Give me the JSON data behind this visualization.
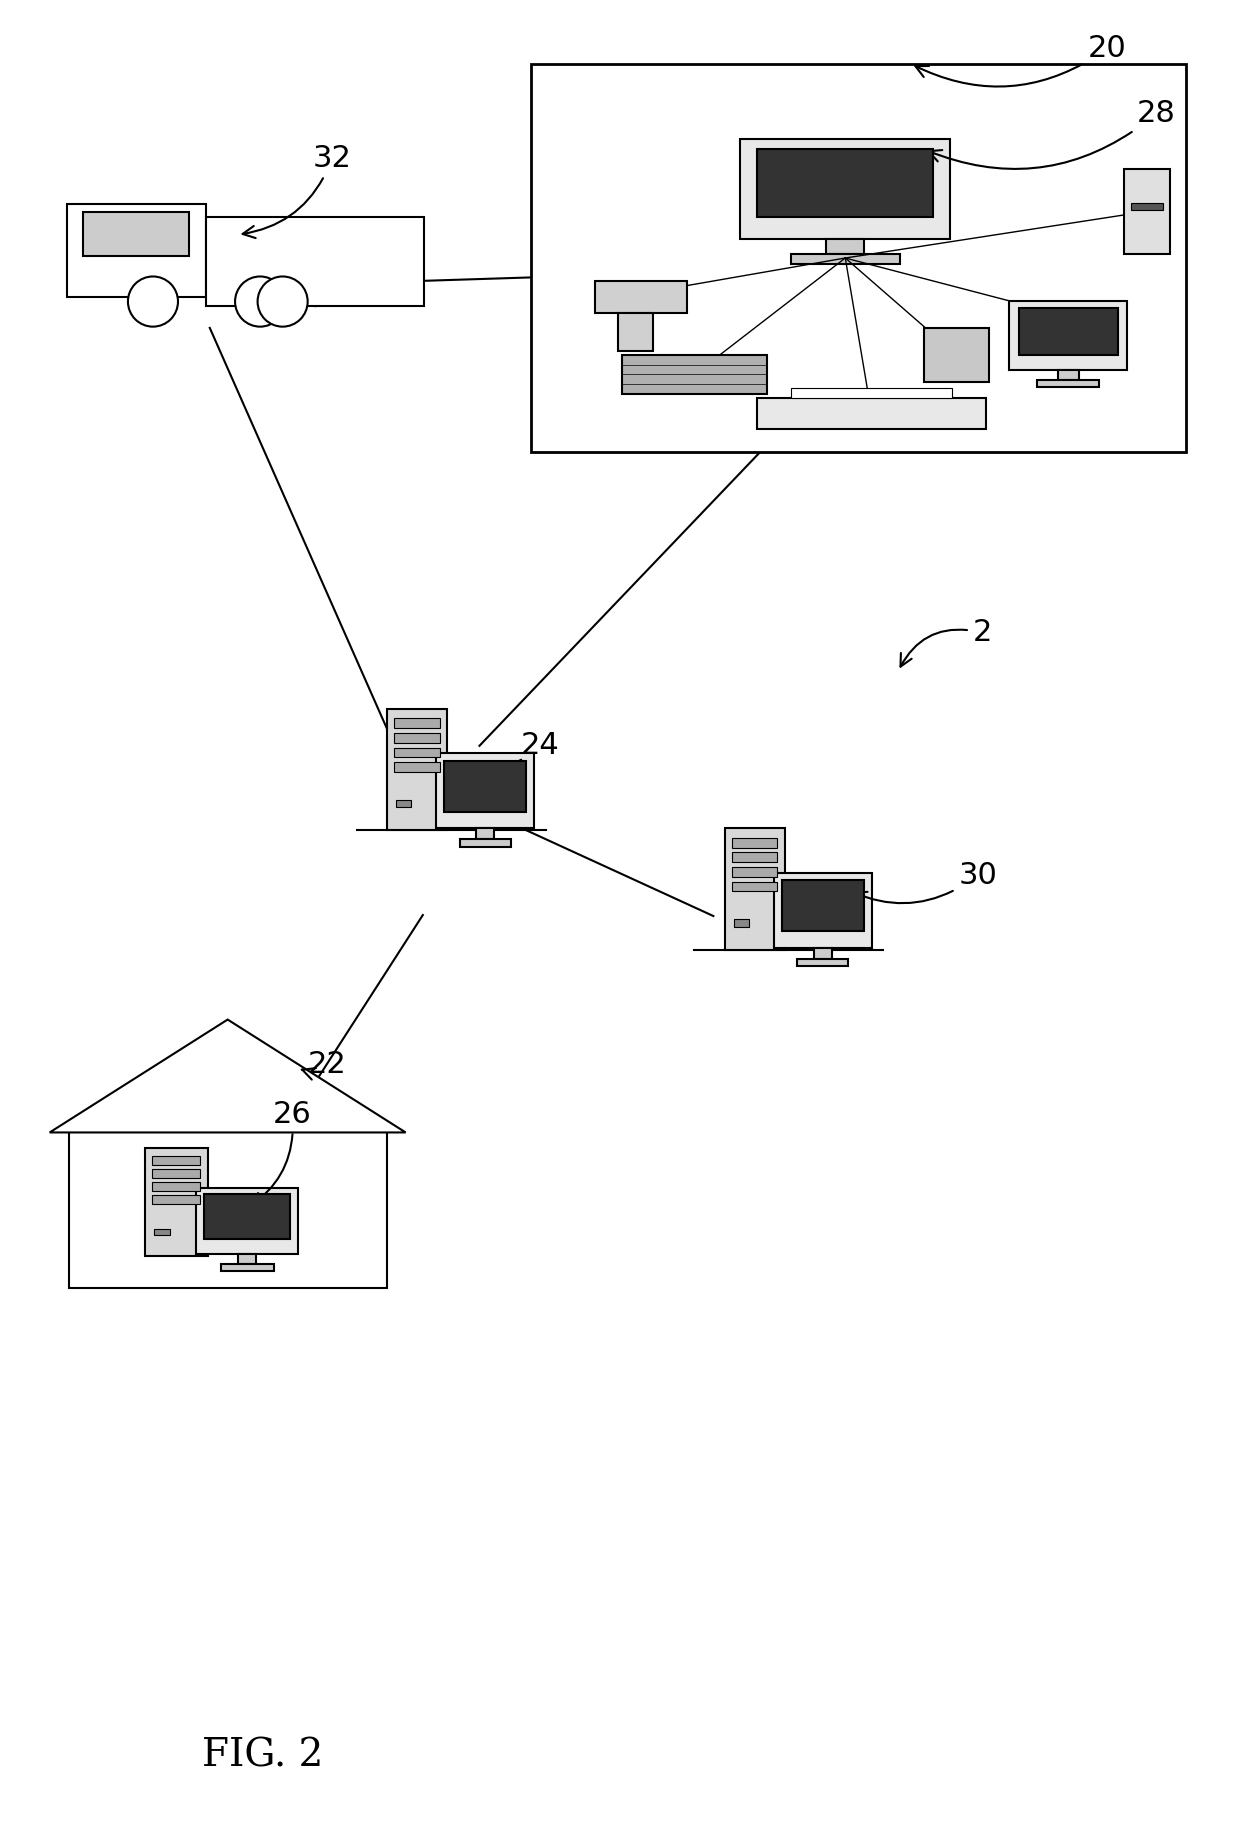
{
  "background_color": "#ffffff",
  "line_color": "#000000",
  "fig_width": 12.4,
  "fig_height": 18.45,
  "labels": {
    "fig_label": "FIG. 2",
    "label_20": "20",
    "label_28": "28",
    "label_32": "32",
    "label_24": "24",
    "label_22": "22",
    "label_26": "26",
    "label_30": "30",
    "label_2": "2"
  }
}
